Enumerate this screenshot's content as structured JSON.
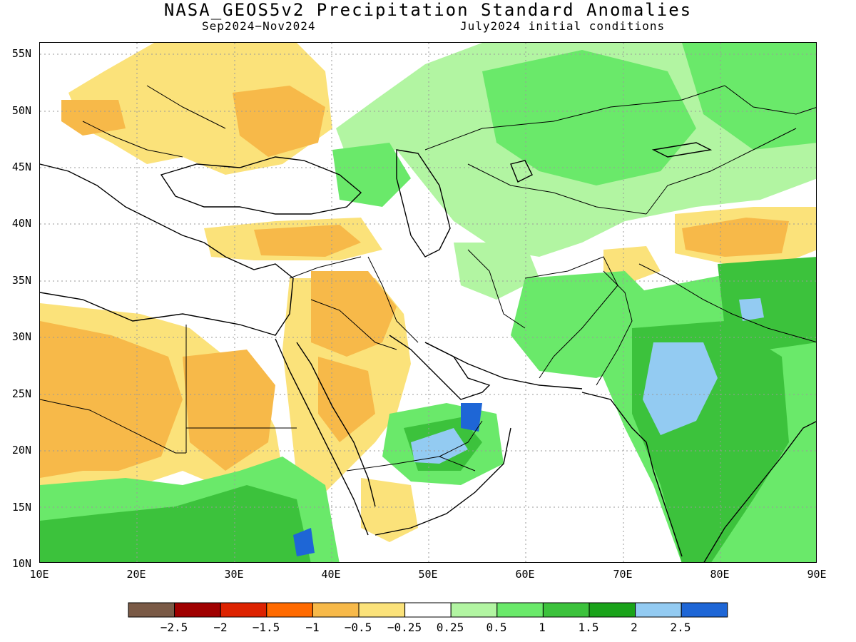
{
  "title": "NASA_GEOS5v2 Precipitation Standard Anomalies",
  "subtitle_left": "Sep2024−Nov2024",
  "subtitle_right": "July2024 initial conditions",
  "map": {
    "lon_range": [
      10,
      90
    ],
    "lat_range": [
      10,
      56
    ],
    "lat_labels": [
      "55N",
      "50N",
      "45N",
      "40N",
      "35N",
      "30N",
      "25N",
      "20N",
      "15N",
      "10N"
    ],
    "lon_labels": [
      "10E",
      "20E",
      "30E",
      "40E",
      "50E",
      "60E",
      "70E",
      "80E",
      "90E"
    ]
  },
  "colorbar": {
    "colors": [
      "#7a5a46",
      "#a00000",
      "#dd2200",
      "#ff6a00",
      "#f7b949",
      "#fbe27a",
      "#ffffff",
      "#b2f5a2",
      "#6ae96a",
      "#3cc23c",
      "#1aa31a",
      "#93cbf2",
      "#1e66d6"
    ],
    "labels": [
      "−2.5",
      "−2",
      "−1.5",
      "−1",
      "−0.5",
      "−0.25",
      "0.25",
      "0.5",
      "1",
      "1.5",
      "2",
      "2.5"
    ]
  }
}
